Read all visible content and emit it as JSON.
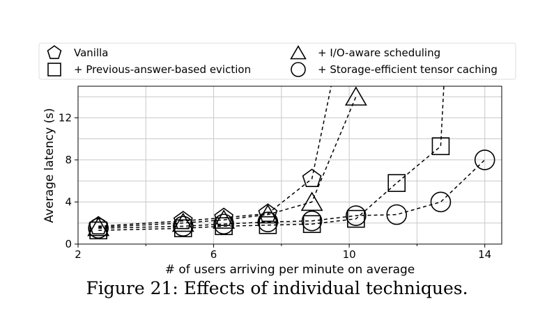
{
  "chart_data": {
    "type": "line",
    "xlabel": "# of users arriving per minute on average",
    "ylabel": "Average latency (s)",
    "xlim": [
      2,
      14.5
    ],
    "ylim": [
      0,
      15
    ],
    "xticks": [
      2,
      6,
      10,
      14
    ],
    "yticks": [
      0,
      4,
      8,
      12
    ],
    "grid": true,
    "legend_placement": "top",
    "series": [
      {
        "name": "Vanilla",
        "marker": "pentagon",
        "x": [
          2.6,
          5.1,
          6.3,
          7.6,
          8.9,
          9.5
        ],
        "y": [
          1.7,
          2.2,
          2.5,
          2.9,
          6.2,
          15.5
        ]
      },
      {
        "name": "+ I/O-aware scheduling",
        "marker": "triangle",
        "x": [
          2.6,
          5.1,
          6.3,
          7.6,
          8.9,
          10.2
        ],
        "y": [
          1.6,
          2.0,
          2.3,
          2.8,
          4.0,
          14.0
        ]
      },
      {
        "name": "+ Previous-answer-based eviction",
        "marker": "square",
        "x": [
          2.6,
          5.1,
          6.3,
          7.6,
          8.9,
          10.2,
          11.4,
          12.7,
          12.8
        ],
        "y": [
          1.3,
          1.5,
          1.7,
          1.8,
          1.9,
          2.4,
          5.8,
          9.3,
          15.5
        ]
      },
      {
        "name": "+ Storage-efficient tensor caching",
        "marker": "circle",
        "x": [
          2.6,
          5.1,
          6.3,
          7.6,
          8.9,
          10.2,
          11.4,
          12.7,
          14.0
        ],
        "y": [
          1.5,
          1.7,
          1.9,
          2.1,
          2.2,
          2.7,
          2.8,
          4.0,
          8.0
        ]
      }
    ]
  },
  "caption": "Figure 21: Effects of individual techniques."
}
